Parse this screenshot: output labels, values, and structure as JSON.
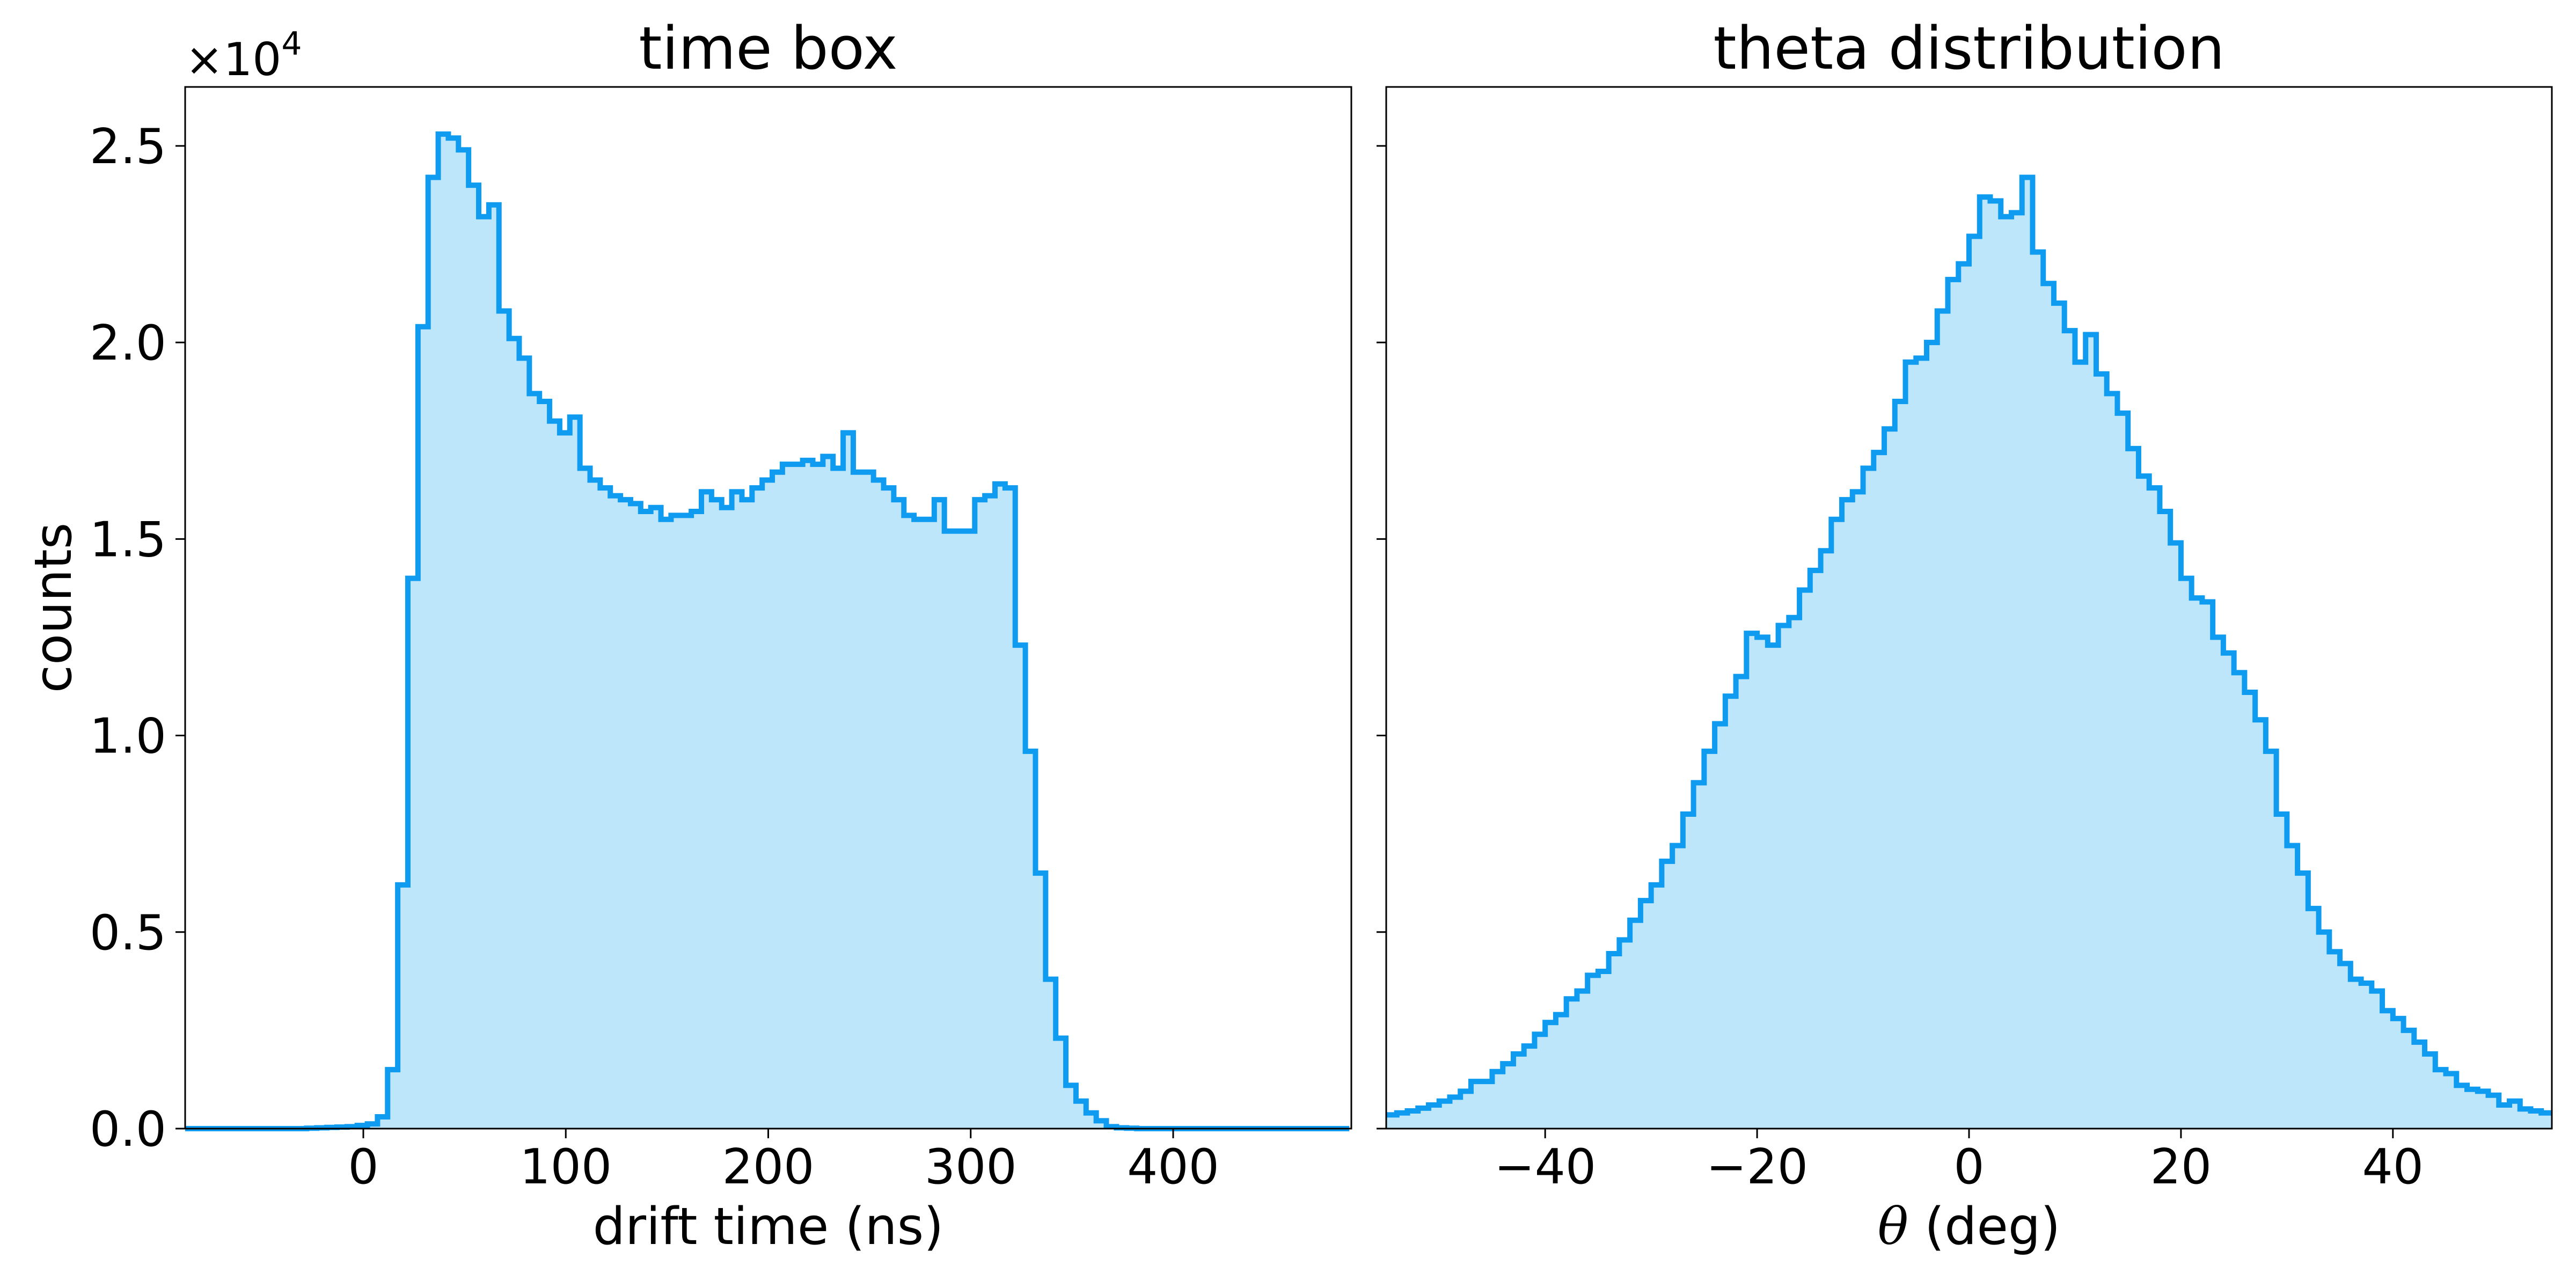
{
  "chart_data": [
    {
      "type": "area",
      "title": "time box",
      "xlabel": "drift time (ns)",
      "ylabel": "counts",
      "y_multiplier": "×10",
      "y_multiplier_exp": "4",
      "xlim": [
        -88,
        488
      ],
      "ylim": [
        0,
        26500
      ],
      "xticks": [
        0,
        100,
        200,
        300,
        400
      ],
      "xtick_labels": [
        "0",
        "100",
        "200",
        "300",
        "400"
      ],
      "yticks": [
        0,
        5000,
        10000,
        15000,
        20000,
        25000
      ],
      "ytick_labels": [
        "0.0",
        "0.5",
        "1.0",
        "1.5",
        "2.0",
        "2.5"
      ],
      "grid": false,
      "colors": {
        "line": "#0f9bf0",
        "fill": "#bde6fb"
      },
      "bin_edges_start": -88,
      "bin_width": 5,
      "series": [
        {
          "values": [
            0,
            0,
            0,
            0,
            0,
            0,
            0,
            0,
            0,
            0,
            0,
            0,
            10,
            20,
            30,
            40,
            50,
            80,
            120,
            300,
            1500,
            6200,
            14000,
            20400,
            24200,
            25300,
            25200,
            24900,
            24000,
            23200,
            23500,
            20800,
            20100,
            19600,
            18700,
            18500,
            18000,
            17700,
            18100,
            16800,
            16500,
            16300,
            16100,
            16000,
            15900,
            15700,
            15800,
            15500,
            15600,
            15600,
            15700,
            16200,
            16000,
            15800,
            16200,
            16000,
            16300,
            16500,
            16700,
            16900,
            16900,
            17000,
            16900,
            17100,
            16800,
            17700,
            16700,
            16700,
            16500,
            16300,
            16000,
            15600,
            15500,
            15500,
            16000,
            15200,
            15200,
            15200,
            16000,
            16100,
            16400,
            16300,
            12300,
            9600,
            6500,
            3800,
            2300,
            1100,
            700,
            400,
            200,
            50,
            20,
            10,
            0,
            0,
            0,
            0,
            0,
            0,
            0,
            0,
            0,
            0,
            0,
            0,
            0,
            0,
            0,
            0,
            0,
            0,
            0,
            0,
            0
          ]
        }
      ]
    },
    {
      "type": "area",
      "title": "theta distribution",
      "xlabel_symbol": "θ",
      "xlabel": "(deg)",
      "xlim": [
        -55,
        55
      ],
      "ylim": [
        0,
        26500
      ],
      "xticks": [
        -40,
        -20,
        0,
        20,
        40
      ],
      "xtick_labels": [
        "−40",
        "−20",
        "0",
        "20",
        "40"
      ],
      "yticks": [
        0,
        5000,
        10000,
        15000,
        20000,
        25000
      ],
      "grid": false,
      "colors": {
        "line": "#0f9bf0",
        "fill": "#bde6fb"
      },
      "bin_edges_start": -55,
      "bin_width": 1,
      "series": [
        {
          "values": [
            350,
            400,
            450,
            520,
            600,
            700,
            800,
            950,
            1200,
            1200,
            1450,
            1650,
            1900,
            2100,
            2400,
            2700,
            2900,
            3300,
            3500,
            3900,
            4000,
            4450,
            4800,
            5300,
            5800,
            6200,
            6800,
            7200,
            8000,
            8800,
            9600,
            10300,
            11000,
            11500,
            12600,
            12500,
            12300,
            12800,
            13000,
            13700,
            14200,
            14700,
            15500,
            16000,
            16200,
            16800,
            17200,
            17800,
            18500,
            19500,
            19600,
            20000,
            20800,
            21600,
            22000,
            22700,
            23700,
            23600,
            23200,
            23300,
            24200,
            22300,
            21500,
            21000,
            20300,
            19500,
            20200,
            19200,
            18700,
            18200,
            17300,
            16600,
            16300,
            15700,
            14900,
            14000,
            13500,
            13400,
            12500,
            12100,
            11600,
            11100,
            10400,
            9600,
            8000,
            7200,
            6500,
            5600,
            5000,
            4500,
            4200,
            3800,
            3700,
            3500,
            3000,
            2800,
            2500,
            2200,
            1900,
            1500,
            1400,
            1100,
            1000,
            950,
            850,
            600,
            700,
            500,
            450,
            400
          ]
        }
      ]
    }
  ]
}
